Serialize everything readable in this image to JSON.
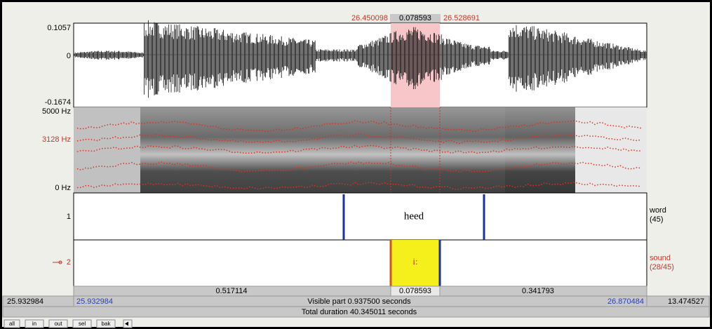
{
  "selection": {
    "start": "26.450098",
    "duration": "0.078593",
    "end": "26.528691"
  },
  "waveform": {
    "max": "0.1057",
    "zero": "0",
    "min": "-0.1674"
  },
  "spectrogram": {
    "max": "5000 Hz",
    "cursor": "3128 Hz",
    "min": "0 Hz"
  },
  "tiers": [
    {
      "number": "1",
      "name": "word",
      "count": "(45)",
      "interval": "heed"
    },
    {
      "number": "2",
      "name": "sound",
      "count": "(28/45)",
      "interval": "i:"
    }
  ],
  "durations": [
    "0.517114",
    "0.078593",
    "0.341793"
  ],
  "window": {
    "left_total": "25.932984",
    "left_visible": "25.932984",
    "visible": "Visible part 0.937500 seconds",
    "right_visible": "26.870484",
    "right_total": "13.474527"
  },
  "total": "Total duration 40.345011 seconds",
  "buttons": [
    "all",
    "in",
    "out",
    "sel",
    "bak"
  ]
}
